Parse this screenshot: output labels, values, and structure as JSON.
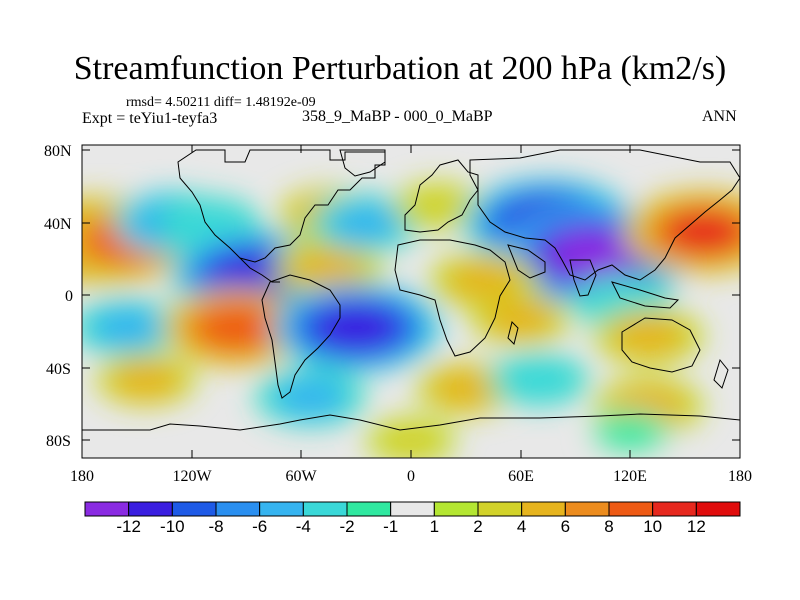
{
  "header": {
    "title": "Streamfunction Perturbation at 200 hPa (km2/s)",
    "stats": "rmsd= 4.50211 diff= 1.48192e-09",
    "experiment": "Expt = teYiu1-teyfa3",
    "period": "358_9_MaBP - 000_0_MaBP",
    "season": "ANN"
  },
  "axes": {
    "lat_labels": [
      "80N",
      "40N",
      "0",
      "40S",
      "80S"
    ],
    "lon_labels": [
      "180",
      "120W",
      "60W",
      "0",
      "60E",
      "120E",
      "180"
    ]
  },
  "colorbar": {
    "labels": [
      "-12",
      "-10",
      "-8",
      "-6",
      "-4",
      "-2",
      "-1",
      "1",
      "2",
      "4",
      "6",
      "8",
      "10",
      "12"
    ],
    "colors": [
      "#8a2be2",
      "#3a1ee0",
      "#1e5ae6",
      "#2a8ff0",
      "#36b4f0",
      "#3ad8d8",
      "#30e8a0",
      "#e8e8e8",
      "#b4e632",
      "#d2d22a",
      "#e6b41e",
      "#ec8c1e",
      "#ee5a14",
      "#e6281e",
      "#e00c0c"
    ]
  },
  "map": {
    "lon_range": [
      -180,
      180
    ],
    "lat_range": [
      -90,
      90
    ],
    "background_color": "#e8e8e8",
    "anomalies": [
      {
        "name": "north-pacific-east-high",
        "lon": -170,
        "lat": 35,
        "value": 11
      },
      {
        "name": "north-pacific-high",
        "lon": -155,
        "lat": 35,
        "value": 9
      },
      {
        "name": "north-pacific-east-low",
        "lon": -130,
        "lat": 45,
        "value": -6
      },
      {
        "name": "north-pacific-low",
        "lon": -110,
        "lat": 45,
        "value": -4
      },
      {
        "name": "central-america-low",
        "lon": -85,
        "lat": 15,
        "value": -11
      },
      {
        "name": "north-america-high",
        "lon": -45,
        "lat": 50,
        "value": 4
      },
      {
        "name": "caribbean-high",
        "lon": -45,
        "lat": 20,
        "value": 5
      },
      {
        "name": "north-atlantic-low",
        "lon": -25,
        "lat": 45,
        "value": -5
      },
      {
        "name": "europe-high",
        "lon": 15,
        "lat": 55,
        "value": 3
      },
      {
        "name": "asia-low",
        "lon": 75,
        "lat": 45,
        "value": -11
      },
      {
        "name": "tibet-low",
        "lon": 100,
        "lat": 27,
        "value": -13
      },
      {
        "name": "north-pacific-west-high",
        "lon": 160,
        "lat": 40,
        "value": 10
      },
      {
        "name": "north-africa-high",
        "lon": 40,
        "lat": 12,
        "value": 5
      },
      {
        "name": "arabia-high",
        "lon": 60,
        "lat": -10,
        "value": 4
      },
      {
        "name": "indian-ocean-low",
        "lon": 115,
        "lat": 0,
        "value": -4
      },
      {
        "name": "maritime-continent-high",
        "lon": 130,
        "lat": -20,
        "value": 5
      },
      {
        "name": "south-pacific-low",
        "lon": -155,
        "lat": -15,
        "value": -5
      },
      {
        "name": "south-america-high",
        "lon": -95,
        "lat": -15,
        "value": 9
      },
      {
        "name": "south-atlantic-low",
        "lon": -30,
        "lat": -15,
        "value": -11
      },
      {
        "name": "southern-ocean-high",
        "lon": -145,
        "lat": -45,
        "value": 4
      },
      {
        "name": "southern-ocean-low",
        "lon": -55,
        "lat": -55,
        "value": -5
      },
      {
        "name": "south-indian-high",
        "lon": 30,
        "lat": -50,
        "value": 4
      },
      {
        "name": "south-indian-low",
        "lon": 70,
        "lat": -45,
        "value": -4
      },
      {
        "name": "southern-high",
        "lon": 130,
        "lat": -60,
        "value": 5
      },
      {
        "name": "antarctic-high",
        "lon": 0,
        "lat": -80,
        "value": 3
      },
      {
        "name": "antarctic-low",
        "lon": 120,
        "lat": -75,
        "value": -2
      }
    ]
  }
}
